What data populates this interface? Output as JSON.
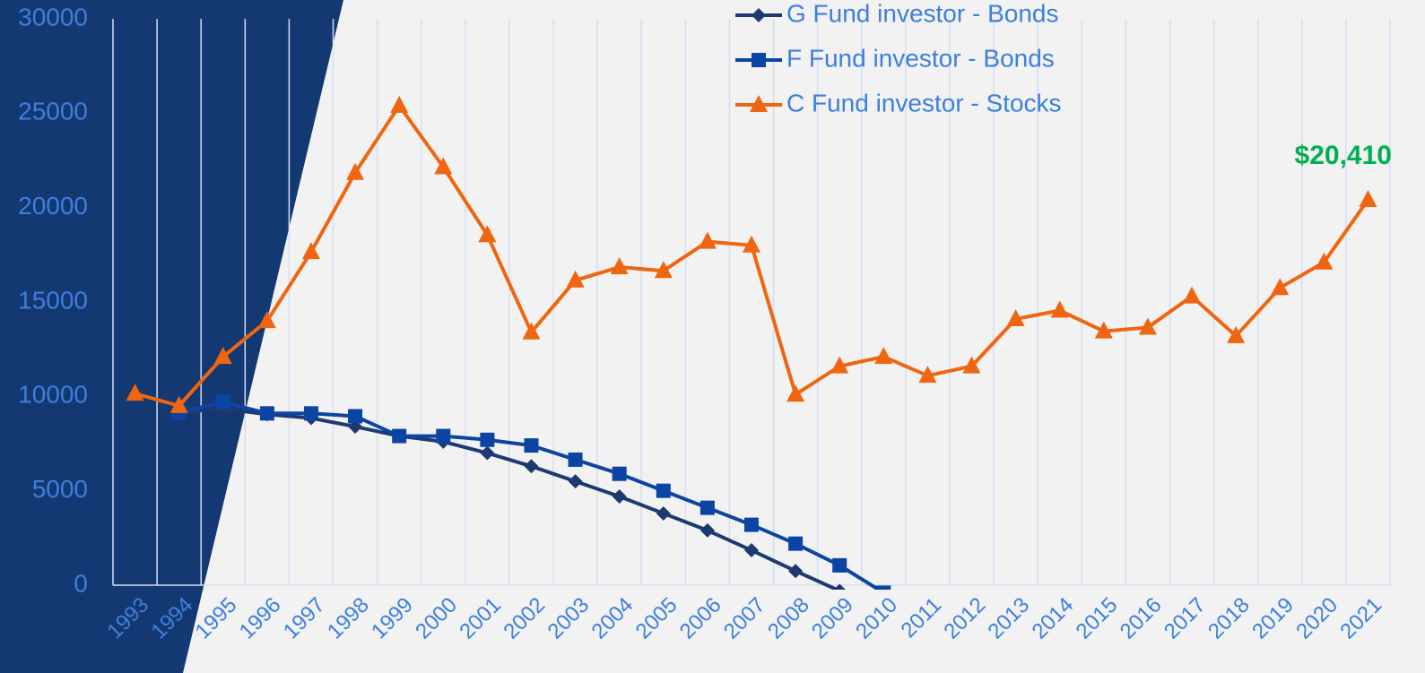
{
  "chart_data": {
    "type": "line",
    "categories": [
      "1993",
      "1994",
      "1995",
      "1996",
      "1997",
      "1998",
      "1999",
      "2000",
      "2001",
      "2002",
      "2003",
      "2004",
      "2005",
      "2006",
      "2007",
      "2008",
      "2009",
      "2010",
      "2011",
      "2012",
      "2013",
      "2014",
      "2015",
      "2016",
      "2017",
      "2018",
      "2019",
      "2020",
      "2021"
    ],
    "series": [
      {
        "name": "G Fund investor - Bonds",
        "color": "#1d3a70",
        "marker": "diamond",
        "values": [
          null,
          9150,
          9350,
          9050,
          8850,
          8400,
          7900,
          7600,
          7000,
          6300,
          5500,
          4700,
          3800,
          2900,
          1850,
          750,
          -300,
          null,
          null,
          null,
          null,
          null,
          null,
          null,
          null,
          null,
          null,
          null,
          null
        ]
      },
      {
        "name": "F Fund investor - Bonds",
        "color": "#0b44a3",
        "marker": "square",
        "values": [
          null,
          9150,
          9700,
          9100,
          9100,
          8950,
          7900,
          7900,
          7700,
          7400,
          6650,
          5900,
          5000,
          4100,
          3200,
          2200,
          1050,
          -400,
          null,
          null,
          null,
          null,
          null,
          null,
          null,
          null,
          null,
          null,
          null
        ]
      },
      {
        "name": "C Fund investor - Stocks",
        "color": "#f0650f",
        "marker": "triangle",
        "values": [
          10150,
          9500,
          12100,
          14000,
          17650,
          21850,
          25400,
          22150,
          18550,
          13400,
          16150,
          16850,
          16650,
          18200,
          18000,
          10100,
          11600,
          12100,
          11100,
          11600,
          14100,
          14550,
          13450,
          13650,
          15300,
          13200,
          15750,
          17100,
          20410
        ]
      }
    ],
    "annotations": [
      {
        "text": "$20,410",
        "color": "#00b050",
        "series": 2,
        "index": 28
      }
    ],
    "ylim": [
      0,
      30000
    ],
    "yticks": [
      0,
      5000,
      10000,
      15000,
      20000,
      25000,
      30000
    ],
    "grid": "x"
  }
}
